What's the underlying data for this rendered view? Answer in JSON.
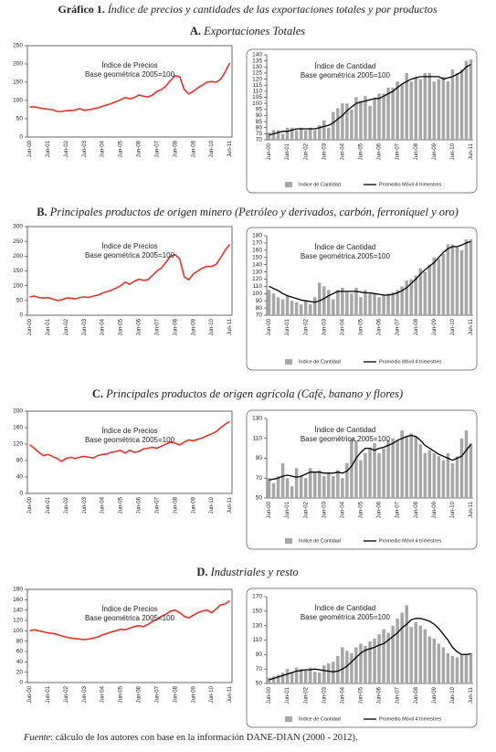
{
  "figure_label": "Gráfico 1.",
  "figure_title": "Índice de precios y cantidades de las exportaciones totales y por productos",
  "sections": [
    {
      "letter": "A.",
      "heading": "Exportaciones Totales"
    },
    {
      "letter": "B.",
      "heading": "Principales productos de origen minero (Petróleo y derivados, carbón, ferroníquel y oro)"
    },
    {
      "letter": "C.",
      "heading": "Principales productos de origen agrícola (Café, banano y flores)"
    },
    {
      "letter": "D.",
      "heading": "Industriales y resto"
    }
  ],
  "source_label": "Fuente",
  "source_text": ": cálculo de los autores con base en la información  DANE-DIAN (2000 - 2012).",
  "chart_data": [
    {
      "type": "line",
      "annotation": [
        "Índice de Precios",
        "Base geométrica 2005=100"
      ],
      "color": "#e2332b",
      "categories": [
        "Jun-00",
        null,
        null,
        null,
        "Jun-01",
        null,
        null,
        null,
        "Jun-02",
        null,
        null,
        null,
        "Jun-03",
        null,
        null,
        null,
        "Jun-04",
        null,
        null,
        null,
        "Jun-05",
        null,
        null,
        null,
        "Jun-06",
        null,
        null,
        null,
        "Jun-07",
        null,
        null,
        null,
        "Jun-08",
        null,
        null,
        null,
        "Jun-09",
        null,
        null,
        null,
        "Jun-10",
        null,
        null,
        null,
        "Jun-11"
      ],
      "values": [
        82,
        83,
        80,
        78,
        76,
        75,
        70,
        70,
        72,
        73,
        74,
        78,
        73,
        75,
        77,
        80,
        84,
        88,
        92,
        97,
        102,
        108,
        105,
        108,
        115,
        112,
        110,
        115,
        125,
        130,
        140,
        155,
        168,
        165,
        130,
        118,
        125,
        135,
        142,
        150,
        152,
        150,
        158,
        178,
        203
      ],
      "ylim": [
        0,
        250
      ],
      "yticks": [
        0,
        50,
        100,
        150,
        200,
        250
      ]
    },
    {
      "type": "bar",
      "annotation": [
        "Índice de Cantidad",
        "Base geométrica 2005=100"
      ],
      "legend": "bottom",
      "categories": [
        "Jun-00",
        null,
        null,
        null,
        "Jun-01",
        null,
        null,
        null,
        "Jun-02",
        null,
        null,
        null,
        "Jun-03",
        null,
        null,
        null,
        "Jun-04",
        null,
        null,
        null,
        "Jun-05",
        null,
        null,
        null,
        "Jun-06",
        null,
        null,
        null,
        "Jun-07",
        null,
        null,
        null,
        "Jun-08",
        null,
        null,
        null,
        "Jun-09",
        null,
        null,
        null,
        "Jun-10",
        null,
        null,
        null,
        "Jun-11"
      ],
      "series": [
        {
          "name": "Índice de Cantidad",
          "color": "#a6a6a6",
          "values": [
            76,
            78,
            78,
            75,
            80,
            80,
            78,
            80,
            78,
            80,
            78,
            82,
            86,
            80,
            93,
            96,
            100,
            100,
            95,
            105,
            102,
            106,
            98,
            104,
            108,
            108,
            113,
            113,
            118,
            116,
            125,
            118,
            122,
            120,
            125,
            125,
            118,
            120,
            122,
            118,
            128,
            125,
            128,
            135,
            136
          ]
        },
        {
          "name": "Promedio Móvil 4 trimestres",
          "color": "#000000",
          "type": "line",
          "values": [
            74,
            75,
            76,
            77,
            77,
            78,
            79,
            79,
            79,
            79,
            79,
            80,
            81,
            82,
            84,
            87,
            90,
            94,
            97,
            100,
            101,
            102,
            103,
            104,
            104,
            106,
            108,
            110,
            113,
            116,
            118,
            120,
            121,
            122,
            122,
            122,
            122,
            122,
            120,
            121,
            122,
            124,
            126,
            130,
            132
          ]
        }
      ],
      "ylim": [
        70,
        140
      ],
      "yticks": [
        70,
        75,
        80,
        85,
        90,
        95,
        100,
        105,
        110,
        115,
        120,
        125,
        130,
        135,
        140
      ]
    },
    {
      "type": "line",
      "annotation": [
        "Índice de Precios",
        "Base geométrica 2005=100"
      ],
      "color": "#e2332b",
      "categories": [
        "Jun-00",
        null,
        null,
        null,
        "Jun-01",
        null,
        null,
        null,
        "Jun-02",
        null,
        null,
        null,
        "Jun-03",
        null,
        null,
        null,
        "Jun-04",
        null,
        null,
        null,
        "Jun-05",
        null,
        null,
        null,
        "Jun-06",
        null,
        null,
        null,
        "Jun-07",
        null,
        null,
        null,
        "Jun-08",
        null,
        null,
        null,
        "Jun-09",
        null,
        null,
        null,
        "Jun-10",
        null,
        null,
        null,
        "Jun-11"
      ],
      "values": [
        62,
        65,
        60,
        58,
        60,
        55,
        50,
        52,
        58,
        58,
        55,
        60,
        62,
        60,
        65,
        68,
        75,
        80,
        85,
        92,
        100,
        112,
        105,
        115,
        122,
        118,
        120,
        135,
        150,
        160,
        180,
        200,
        205,
        190,
        130,
        120,
        140,
        150,
        160,
        165,
        165,
        172,
        195,
        220,
        240
      ],
      "ylim": [
        0,
        300
      ],
      "yticks": [
        0,
        50,
        100,
        150,
        200,
        250,
        300
      ]
    },
    {
      "type": "bar",
      "annotation": [
        "Índice de Cantidad",
        "Base geométrica 2005=100"
      ],
      "legend": "bottom",
      "categories": [
        "Jun-00",
        null,
        null,
        null,
        "Jun-01",
        null,
        null,
        null,
        "Jun-02",
        null,
        null,
        null,
        "Jun-03",
        null,
        null,
        null,
        "Jun-04",
        null,
        null,
        null,
        "Jun-05",
        null,
        null,
        null,
        "Jun-06",
        null,
        null,
        null,
        "Jun-07",
        null,
        null,
        null,
        "Jun-08",
        null,
        null,
        null,
        "Jun-09",
        null,
        null,
        null,
        "Jun-10",
        null,
        null,
        null,
        "Jun-11"
      ],
      "series": [
        {
          "name": "Índice de Cantidad",
          "color": "#a6a6a6",
          "values": [
            105,
            100,
            95,
            92,
            97,
            90,
            88,
            85,
            90,
            85,
            95,
            115,
            110,
            105,
            92,
            105,
            108,
            102,
            100,
            108,
            95,
            105,
            100,
            100,
            95,
            98,
            100,
            102,
            105,
            110,
            118,
            120,
            125,
            135,
            130,
            140,
            150,
            148,
            155,
            168,
            168,
            165,
            160,
            175,
            175
          ]
        },
        {
          "name": "Promedio Móvil 4 trimestres",
          "color": "#000000",
          "type": "line",
          "values": [
            110,
            107,
            104,
            100,
            97,
            95,
            93,
            91,
            90,
            89,
            88,
            90,
            93,
            97,
            100,
            103,
            103,
            103,
            103,
            103,
            102,
            101,
            101,
            100,
            99,
            98,
            98,
            99,
            101,
            104,
            108,
            114,
            120,
            127,
            133,
            138,
            143,
            150,
            157,
            162,
            165,
            165,
            167,
            170,
            172
          ]
        }
      ],
      "ylim": [
        70,
        180
      ],
      "yticks": [
        70,
        80,
        90,
        100,
        110,
        120,
        130,
        140,
        150,
        160,
        170,
        180
      ]
    },
    {
      "type": "line",
      "annotation": [
        "Índice de Precios",
        "Base geométrica 2005=100"
      ],
      "color": "#e2332b",
      "categories": [
        "Jun-00",
        null,
        null,
        null,
        "Jun-01",
        null,
        null,
        null,
        "Jun-02",
        null,
        null,
        null,
        "Jun-03",
        null,
        null,
        null,
        "Jun-04",
        null,
        null,
        null,
        "Jun-05",
        null,
        null,
        null,
        "Jun-06",
        null,
        null,
        null,
        "Jun-07",
        null,
        null,
        null,
        "Jun-08",
        null,
        null,
        null,
        "Jun-09",
        null,
        null,
        null,
        "Jun-10",
        null,
        null,
        null,
        "Jun-11"
      ],
      "values": [
        118,
        110,
        100,
        92,
        95,
        90,
        85,
        78,
        85,
        88,
        85,
        88,
        90,
        88,
        86,
        92,
        95,
        96,
        100,
        102,
        105,
        98,
        105,
        100,
        102,
        108,
        110,
        112,
        110,
        115,
        120,
        125,
        122,
        118,
        125,
        130,
        128,
        132,
        135,
        140,
        145,
        150,
        160,
        168,
        175
      ],
      "ylim": [
        0,
        200
      ],
      "yticks": [
        0,
        40,
        80,
        120,
        160,
        200
      ]
    },
    {
      "type": "bar",
      "annotation": [
        "Índice de Cantidad",
        "Base geométrica 2005=100"
      ],
      "legend": "bottom",
      "categories": [
        "Jun-00",
        null,
        null,
        null,
        "Jun-01",
        null,
        null,
        null,
        "Jun-02",
        null,
        null,
        null,
        "Jun-03",
        null,
        null,
        null,
        "Jun-04",
        null,
        null,
        null,
        "Jun-05",
        null,
        null,
        null,
        "Jun-06",
        null,
        null,
        null,
        "Jun-07",
        null,
        null,
        null,
        "Jun-08",
        null,
        null,
        null,
        "Jun-09",
        null,
        null,
        null,
        "Jun-10",
        null,
        null,
        null,
        "Jun-11"
      ],
      "series": [
        {
          "name": "Índice de Cantidad",
          "color": "#a6a6a6",
          "values": [
            70,
            65,
            72,
            85,
            70,
            62,
            80,
            72,
            70,
            80,
            76,
            78,
            72,
            75,
            72,
            78,
            70,
            85,
            110,
            108,
            88,
            95,
            100,
            105,
            95,
            100,
            108,
            110,
            108,
            118,
            112,
            115,
            112,
            104,
            95,
            98,
            95,
            92,
            88,
            95,
            85,
            92,
            110,
            118,
            105
          ]
        },
        {
          "name": "Promedio Móvil 4 trimestres",
          "color": "#000000",
          "type": "line",
          "values": [
            68,
            69,
            70,
            72,
            73,
            72,
            71,
            72,
            74,
            76,
            76,
            76,
            75,
            75,
            75,
            76,
            75,
            77,
            82,
            90,
            96,
            100,
            100,
            98,
            100,
            101,
            103,
            105,
            108,
            110,
            112,
            113,
            112,
            108,
            103,
            100,
            97,
            94,
            92,
            90,
            88,
            90,
            92,
            98,
            104
          ]
        }
      ],
      "ylim": [
        50,
        130
      ],
      "yticks": [
        50,
        70,
        90,
        110,
        130
      ]
    },
    {
      "type": "line",
      "annotation": [
        "Índice de Precios",
        "Base geométrica 2005=100"
      ],
      "color": "#e2332b",
      "categories": [
        "Jun-00",
        null,
        null,
        null,
        "Jun-01",
        null,
        null,
        null,
        "Jun-02",
        null,
        null,
        null,
        "Jun-03",
        null,
        null,
        null,
        "Jun-04",
        null,
        null,
        null,
        "Jun-05",
        null,
        null,
        null,
        "Jun-06",
        null,
        null,
        null,
        "Jun-07",
        null,
        null,
        null,
        "Jun-08",
        null,
        null,
        null,
        "Jun-09",
        null,
        null,
        null,
        "Jun-10",
        null,
        null,
        null,
        "Jun-11"
      ],
      "values": [
        100,
        102,
        100,
        98,
        96,
        95,
        93,
        90,
        88,
        86,
        85,
        84,
        83,
        84,
        86,
        88,
        92,
        95,
        98,
        100,
        103,
        102,
        105,
        108,
        110,
        108,
        112,
        118,
        122,
        128,
        132,
        138,
        140,
        135,
        128,
        125,
        130,
        135,
        138,
        140,
        135,
        142,
        150,
        152,
        158
      ],
      "ylim": [
        0,
        180
      ],
      "yticks": [
        0,
        20,
        40,
        60,
        80,
        100,
        120,
        140,
        160,
        180
      ]
    },
    {
      "type": "bar",
      "annotation": [
        "Índice de Cantidad",
        "Base geométrica 2005=100"
      ],
      "legend": "bottom",
      "categories": [
        "Jun-00",
        null,
        null,
        null,
        "Jun-01",
        null,
        null,
        null,
        "Jun-02",
        null,
        null,
        null,
        "Jun-03",
        null,
        null,
        null,
        "Jun-04",
        null,
        null,
        null,
        "Jun-05",
        null,
        null,
        null,
        "Jun-06",
        null,
        null,
        null,
        "Jun-07",
        null,
        null,
        null,
        "Jun-08",
        null,
        null,
        null,
        "Jun-09",
        null,
        null,
        null,
        "Jun-10",
        null,
        null,
        null,
        "Jun-11"
      ],
      "series": [
        {
          "name": "Índice de Cantidad",
          "color": "#a6a6a6",
          "values": [
            58,
            60,
            62,
            65,
            70,
            66,
            72,
            70,
            68,
            72,
            66,
            65,
            75,
            78,
            80,
            88,
            100,
            95,
            92,
            100,
            105,
            102,
            108,
            112,
            118,
            125,
            120,
            130,
            140,
            148,
            158,
            128,
            135,
            130,
            125,
            115,
            112,
            105,
            100,
            92,
            88,
            86,
            90,
            90,
            92
          ]
        },
        {
          "name": "Promedio Móvil 4 trimestres",
          "color": "#000000",
          "type": "line",
          "values": [
            55,
            57,
            59,
            61,
            63,
            65,
            67,
            68,
            69,
            69,
            70,
            69,
            68,
            67,
            66,
            67,
            70,
            74,
            80,
            86,
            92,
            96,
            98,
            100,
            103,
            105,
            110,
            115,
            120,
            127,
            132,
            138,
            140,
            140,
            138,
            136,
            132,
            126,
            118,
            110,
            100,
            94,
            90,
            90,
            91
          ]
        }
      ],
      "ylim": [
        50,
        170
      ],
      "yticks": [
        50,
        70,
        90,
        110,
        130,
        150,
        170
      ]
    }
  ]
}
